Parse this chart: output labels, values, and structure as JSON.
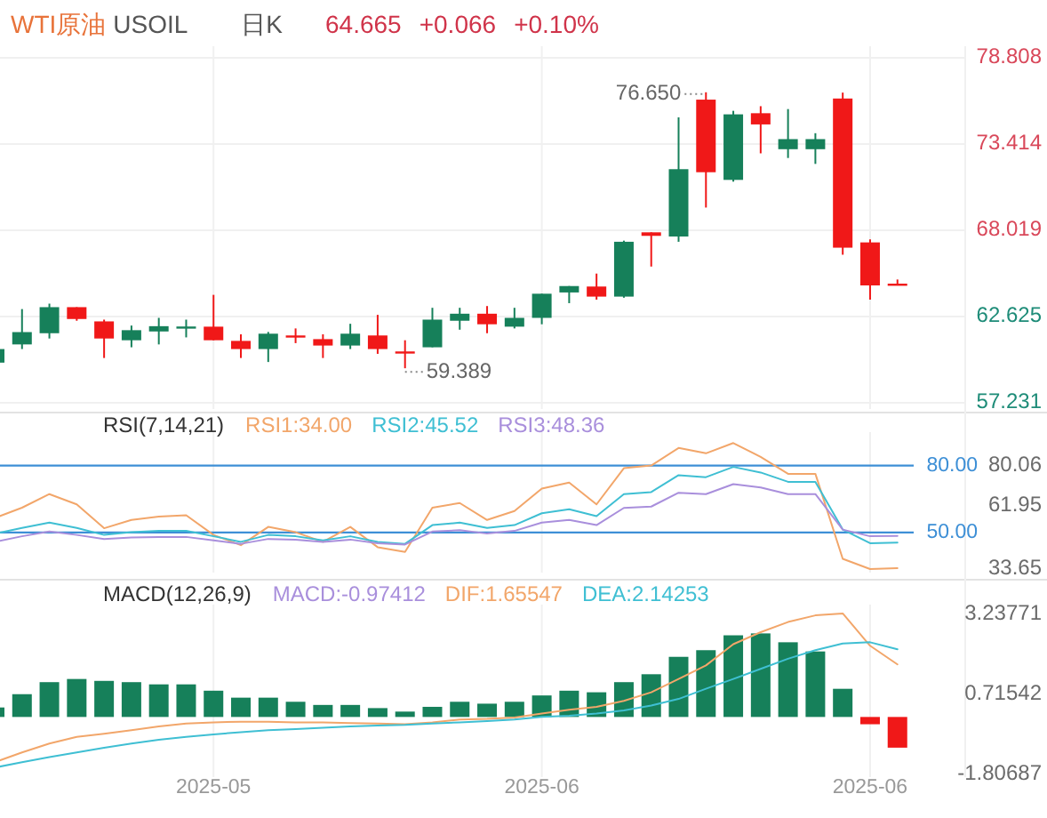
{
  "chart_data": [
    {
      "type": "candlestick",
      "title": "WTI原油",
      "subtitle": "USOIL",
      "annotations": [
        "日K",
        "64.665",
        "+0.066",
        "+0.10%",
        "76.650",
        "59.389"
      ],
      "categories": [
        null,
        null,
        null,
        null,
        null,
        null,
        null,
        null,
        "2025-05",
        null,
        null,
        null,
        null,
        null,
        null,
        null,
        null,
        null,
        null,
        null,
        "2025-06",
        null,
        null,
        null,
        null,
        null,
        null,
        null,
        null,
        null,
        null,
        null,
        "2025-06",
        null
      ],
      "ohlc": [
        [
          59.74,
          60.59,
          59.6,
          60.59
        ],
        [
          60.88,
          63.09,
          60.59,
          61.65
        ],
        [
          61.58,
          63.43,
          61.25,
          63.21
        ],
        [
          63.21,
          63.21,
          62.36,
          62.47
        ],
        [
          62.32,
          62.43,
          60.03,
          61.25
        ],
        [
          61.14,
          62.06,
          60.7,
          61.77
        ],
        [
          61.69,
          62.54,
          60.88,
          62.02
        ],
        [
          61.95,
          62.43,
          61.32,
          62.0
        ],
        [
          61.99,
          63.98,
          61.14,
          61.14
        ],
        [
          61.1,
          61.51,
          60.03,
          60.59
        ],
        [
          60.59,
          61.66,
          59.78,
          61.55
        ],
        [
          61.44,
          61.88,
          60.96,
          61.36
        ],
        [
          61.21,
          61.51,
          60.03,
          60.81
        ],
        [
          60.81,
          62.17,
          60.59,
          61.55
        ],
        [
          61.44,
          62.73,
          60.29,
          60.59
        ],
        [
          60.44,
          61.14,
          59.389,
          60.33
        ],
        [
          60.7,
          63.17,
          60.7,
          62.43
        ],
        [
          62.36,
          63.17,
          61.8,
          62.8
        ],
        [
          62.8,
          63.28,
          61.58,
          62.14
        ],
        [
          61.99,
          63.17,
          61.88,
          62.54
        ],
        [
          62.54,
          64.05,
          62.14,
          64.05
        ],
        [
          64.13,
          64.53,
          63.46,
          64.53
        ],
        [
          64.5,
          65.31,
          63.68,
          63.87
        ],
        [
          63.87,
          67.37,
          63.8,
          67.3
        ],
        [
          67.89,
          67.89,
          65.75,
          67.67
        ],
        [
          67.63,
          75.08,
          67.3,
          71.84
        ],
        [
          76.19,
          76.65,
          69.44,
          71.65
        ],
        [
          71.17,
          75.49,
          71.06,
          75.27
        ],
        [
          75.34,
          75.78,
          72.83,
          74.64
        ],
        [
          73.09,
          75.6,
          72.54,
          73.72
        ],
        [
          73.09,
          74.09,
          72.17,
          73.72
        ],
        [
          76.26,
          76.63,
          66.49,
          66.93
        ],
        [
          67.26,
          67.45,
          63.68,
          64.57
        ],
        [
          64.68,
          64.94,
          64.57,
          64.665
        ]
      ],
      "colors": [
        "#16805a",
        "#16805a",
        "#16805a",
        "#f01818",
        "#f01818",
        "#16805a",
        "#16805a",
        "#16805a",
        "#f01818",
        "#f01818",
        "#16805a",
        "#f01818",
        "#f01818",
        "#16805a",
        "#f01818",
        "#f01818",
        "#16805a",
        "#16805a",
        "#f01818",
        "#16805a",
        "#16805a",
        "#16805a",
        "#f01818",
        "#16805a",
        "#f01818",
        "#16805a",
        "#f01818",
        "#16805a",
        "#f01818",
        "#16805a",
        "#16805a",
        "#f01818",
        "#f01818",
        "#f01818"
      ],
      "ylim": [
        56.84,
        79.53
      ],
      "yticks": [
        57.231,
        62.625,
        68.019,
        73.414,
        78.808
      ],
      "grid": true,
      "tick_labels": "y"
    },
    {
      "type": "line",
      "legend_title": "RSI(7,14,21)",
      "legend": "top",
      "grid": "x",
      "tick_labels": "y",
      "categories": [
        null,
        null,
        null,
        null,
        null,
        null,
        null,
        null,
        "2025-05",
        null,
        null,
        null,
        null,
        null,
        null,
        null,
        null,
        null,
        null,
        null,
        "2025-06",
        null,
        null,
        null,
        null,
        null,
        null,
        null,
        null,
        null,
        null,
        null,
        "2025-06",
        null
      ],
      "series": [
        {
          "name": "RSI1:34.00",
          "color": "#f2a66a",
          "values": [
            56.5,
            61.1,
            67.2,
            62.6,
            51.9,
            55.6,
            57.1,
            57.7,
            48.9,
            44.3,
            52.5,
            50.1,
            45.8,
            52.5,
            43.4,
            41.3,
            61.1,
            63.2,
            55.6,
            59.6,
            69.7,
            72.4,
            62.6,
            78.8,
            80.0,
            87.9,
            85.5,
            90.1,
            83.9,
            76.3,
            76.3,
            38.2,
            33.6,
            34.0
          ]
        },
        {
          "name": "RSI2:45.52",
          "color": "#3fbfd3",
          "values": [
            49.5,
            52.0,
            54.4,
            52.0,
            48.9,
            50.1,
            50.7,
            50.7,
            48.3,
            45.8,
            48.9,
            48.3,
            46.5,
            48.3,
            45.8,
            44.9,
            53.3,
            54.4,
            52.0,
            53.3,
            58.6,
            60.4,
            57.3,
            67.2,
            68.1,
            75.7,
            74.8,
            79.4,
            76.9,
            72.7,
            72.7,
            51.3,
            45.2,
            45.5
          ]
        },
        {
          "name": "RSI3:48.36",
          "color": "#a98fdc",
          "values": [
            45.8,
            48.3,
            50.4,
            48.9,
            47.1,
            47.7,
            48.0,
            48.0,
            46.5,
            44.9,
            47.1,
            46.8,
            45.8,
            46.8,
            45.2,
            44.6,
            50.4,
            51.0,
            49.5,
            50.7,
            54.4,
            55.6,
            53.3,
            61.0,
            61.6,
            67.8,
            67.2,
            71.7,
            70.2,
            67.2,
            67.2,
            51.3,
            48.3,
            48.4
          ]
        }
      ],
      "ylim": [
        32,
        95
      ],
      "yticks": [
        33.65,
        61.95,
        80.06
      ],
      "ref_lines": [
        {
          "axis": "y",
          "value": 80,
          "label": "80.00",
          "color": "#3d8fd6"
        },
        {
          "axis": "y",
          "value": 50,
          "label": "50.00",
          "color": "#3d8fd6"
        }
      ]
    },
    {
      "type": "bar",
      "legend_title": "MACD(12,26,9)",
      "annotations": [
        "MACD:-0.97412"
      ],
      "legend": "top",
      "grid": "x",
      "categories": [
        null,
        null,
        null,
        null,
        null,
        null,
        null,
        null,
        "2025-05",
        null,
        null,
        null,
        null,
        null,
        null,
        null,
        null,
        null,
        null,
        null,
        "2025-06",
        null,
        null,
        null,
        null,
        null,
        null,
        null,
        null,
        null,
        null,
        null,
        "2025-06",
        null
      ],
      "series": [
        {
          "type": "bar",
          "colors": [
            "#16805a",
            "#16805a",
            "#16805a",
            "#16805a",
            "#16805a",
            "#16805a",
            "#16805a",
            "#16805a",
            "#16805a",
            "#16805a",
            "#16805a",
            "#16805a",
            "#16805a",
            "#16805a",
            "#16805a",
            "#16805a",
            "#16805a",
            "#16805a",
            "#16805a",
            "#16805a",
            "#16805a",
            "#16805a",
            "#16805a",
            "#16805a",
            "#16805a",
            "#16805a",
            "#16805a",
            "#16805a",
            "#16805a",
            "#16805a",
            "#16805a",
            "#16805a",
            "#f01818",
            "#f01818"
          ],
          "values": [
            0.3,
            0.72,
            1.1,
            1.2,
            1.14,
            1.1,
            1.03,
            1.03,
            0.83,
            0.61,
            0.61,
            0.48,
            0.38,
            0.38,
            0.28,
            0.17,
            0.32,
            0.48,
            0.42,
            0.48,
            0.68,
            0.83,
            0.78,
            1.1,
            1.35,
            1.9,
            2.11,
            2.58,
            2.64,
            2.36,
            2.07,
            0.89,
            -0.23,
            -0.97
          ]
        },
        {
          "type": "line",
          "name": "DIF:1.65547",
          "color": "#f2a66a",
          "values": [
            -1.43,
            -1.12,
            -0.84,
            -0.63,
            -0.53,
            -0.42,
            -0.3,
            -0.21,
            -0.17,
            -0.15,
            -0.15,
            -0.17,
            -0.17,
            -0.19,
            -0.21,
            -0.23,
            -0.17,
            -0.08,
            -0.06,
            -0.02,
            0.11,
            0.23,
            0.32,
            0.51,
            0.78,
            1.2,
            1.63,
            2.3,
            2.68,
            3.0,
            3.21,
            3.27,
            2.25,
            1.66
          ]
        },
        {
          "type": "line",
          "name": "DEA:2.14253",
          "color": "#3fbfd3",
          "values": [
            -1.6,
            -1.43,
            -1.27,
            -1.12,
            -0.97,
            -0.84,
            -0.72,
            -0.63,
            -0.55,
            -0.48,
            -0.42,
            -0.38,
            -0.34,
            -0.3,
            -0.27,
            -0.25,
            -0.21,
            -0.17,
            -0.13,
            -0.08,
            0.0,
            0.04,
            0.11,
            0.21,
            0.36,
            0.57,
            0.89,
            1.2,
            1.52,
            1.84,
            2.11,
            2.32,
            2.36,
            2.14
          ]
        }
      ],
      "ylim": [
        -1.9,
        3.55
      ],
      "yticks": [
        -1.80687,
        0.71542,
        3.23771
      ]
    }
  ]
}
